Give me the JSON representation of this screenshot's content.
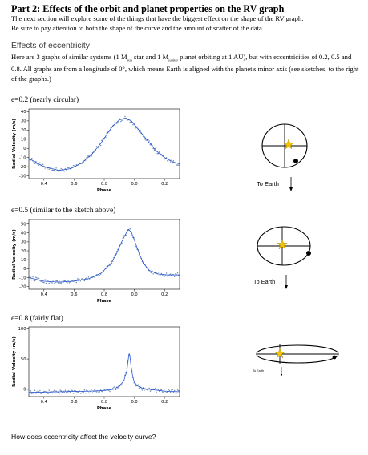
{
  "document": {
    "title": "Part 2: Effects of the orbit and planet properties  on the RV graph",
    "intro_line1": "The next section will explore some of the things that have the biggest effect on the shape of the RV graph.",
    "intro_line2": "Be sure to pay attention to both the shape of the curve and the amount of scatter of the data.",
    "section_heading": "Effects of eccentricity",
    "desc_part1": "Here are 3 graphs of similar systems (1 M",
    "desc_sub1": "sun",
    "desc_part2": " star and 1 M",
    "desc_sub2": "jupiter",
    "desc_part3": " planet orbiting at 1 AU), but with eccentricities of 0.2, 0.5 and 0.8. All graphs are from a longitude of 0°, which means Earth is aligned with the planet's minor axis (see sketches, to the right of the graphs.)",
    "question": "How does eccentricity affect the velocity curve?"
  },
  "cases": [
    {
      "label": "e=0.2 (nearly circular)",
      "to_earth": "To Earth"
    },
    {
      "label": "e=0.5 (similar to the sketch above)",
      "to_earth": "To Earth"
    },
    {
      "label": "e=0.8 (fairly flat)",
      "to_earth": "To Earth"
    }
  ],
  "colors": {
    "data_points": "#6f8fb5",
    "model_curve": "#1f4bd1",
    "star": "#f5c400",
    "planet": "#000000"
  },
  "chart_data": [
    {
      "type": "scatter",
      "eccentricity": 0.2,
      "xlabel": "Phase",
      "ylabel": "Radial Velocity (m/s)",
      "x_ticks": [
        "0.4",
        "0.6",
        "0.8",
        "0.0",
        "0.2"
      ],
      "y_ticks": [
        -30,
        -20,
        -10,
        0,
        10,
        20,
        30,
        40
      ],
      "ylim": [
        -33,
        43
      ],
      "phase_range": [
        0.3,
        1.3
      ],
      "series": [
        {
          "x": [
            0.3,
            0.4,
            0.5,
            0.58,
            0.65,
            0.72,
            0.78,
            0.82,
            0.86,
            0.9,
            0.94,
            0.98,
            1.02,
            1.08,
            1.14,
            1.2,
            1.26,
            1.3
          ],
          "y": [
            -11,
            -20,
            -24,
            -22,
            -16,
            -6,
            6,
            16,
            25,
            31,
            33,
            30,
            22,
            10,
            -2,
            -10,
            -15,
            -17
          ]
        }
      ]
    },
    {
      "type": "scatter",
      "eccentricity": 0.5,
      "xlabel": "Phase",
      "ylabel": "Radial Velocity (m/s)",
      "x_ticks": [
        "0.4",
        "0.6",
        "0.8",
        "0.0",
        "0.2"
      ],
      "y_ticks": [
        -20,
        -10,
        0,
        10,
        20,
        30,
        40,
        50
      ],
      "ylim": [
        -23,
        55
      ],
      "phase_range": [
        0.3,
        1.3
      ],
      "series": [
        {
          "x": [
            0.3,
            0.4,
            0.5,
            0.6,
            0.7,
            0.78,
            0.84,
            0.88,
            0.91,
            0.94,
            0.96,
            0.98,
            1.0,
            1.03,
            1.06,
            1.1,
            1.16,
            1.22,
            1.3
          ],
          "y": [
            -10,
            -14,
            -15,
            -14,
            -11,
            -5,
            5,
            16,
            28,
            38,
            44,
            41,
            32,
            18,
            6,
            -2,
            -6,
            -7,
            -7
          ]
        }
      ]
    },
    {
      "type": "scatter",
      "eccentricity": 0.8,
      "xlabel": "Phase",
      "ylabel": "Radial Velocity (m/s)",
      "x_ticks": [
        "0.4",
        "0.6",
        "0.8",
        "0.0",
        "0.2"
      ],
      "y_ticks": [
        0,
        50,
        100
      ],
      "ylim": [
        -12,
        103
      ],
      "phase_range": [
        0.3,
        1.3
      ],
      "series": [
        {
          "x": [
            0.3,
            0.5,
            0.7,
            0.8,
            0.86,
            0.9,
            0.93,
            0.95,
            0.96,
            0.965,
            0.97,
            0.98,
            0.99,
            1.0,
            1.02,
            1.05,
            1.1,
            1.2,
            1.3
          ],
          "y": [
            -5,
            -4,
            -3,
            -2,
            0,
            5,
            14,
            30,
            50,
            60,
            55,
            35,
            20,
            12,
            6,
            2,
            0,
            -3,
            -4
          ]
        }
      ]
    }
  ]
}
